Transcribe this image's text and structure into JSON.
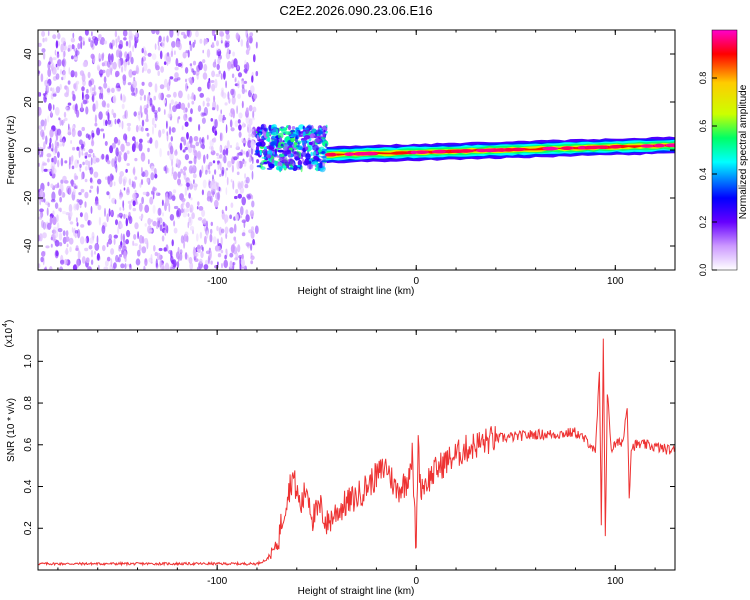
{
  "page": {
    "title": "C2E2.2026.090.23.06.E16"
  },
  "chart_data": [
    {
      "type": "heatmap",
      "xlabel": "Height of straight line (km)",
      "ylabel": "Frequency (Hz)",
      "xlim": [
        -190,
        130
      ],
      "ylim": [
        -50,
        50
      ],
      "x_ticks": [
        -100,
        0,
        100
      ],
      "x_tick_labels": [
        "-100",
        "0",
        "100"
      ],
      "y_ticks": [
        -40,
        -20,
        0,
        20,
        40
      ],
      "y_tick_labels": [
        "-40",
        "-20",
        "0",
        "20",
        "40"
      ],
      "colorbar": {
        "label": "Normalized spectral amplitude",
        "range": [
          0,
          1
        ],
        "ticks": [
          0.0,
          0.2,
          0.4,
          0.6,
          0.8
        ],
        "tick_labels": [
          "0.0",
          "0.2",
          "0.4",
          "0.6",
          "0.8"
        ],
        "colors": [
          "#ffffff",
          "#cc99ff",
          "#6600ff",
          "#0000ff",
          "#00ffff",
          "#00ff66",
          "#ccff00",
          "#ffcc00",
          "#ff0000",
          "#ff00cc"
        ]
      },
      "regions": [
        {
          "x_range": [
            -190,
            -80
          ],
          "freq_range": [
            -50,
            50
          ],
          "amplitude": 0.15,
          "pattern": "noise"
        },
        {
          "x_range": [
            -80,
            -45
          ],
          "freq_range": [
            -8,
            10
          ],
          "amplitude": 0.45,
          "pattern": "blob"
        },
        {
          "x_range": [
            -45,
            130
          ],
          "freq_center": [
            -2,
            2
          ],
          "amplitude": 0.9,
          "pattern": "band"
        }
      ]
    },
    {
      "type": "line",
      "xlabel": "Height of straight line (km)",
      "ylabel": "SNR (10 * v/v)",
      "y_scale_label": "(x10",
      "y_scale_exp": "4",
      "xlim": [
        -190,
        130
      ],
      "ylim": [
        0,
        1.15
      ],
      "x_ticks": [
        -100,
        0,
        100
      ],
      "x_tick_labels": [
        "-100",
        "0",
        "100"
      ],
      "y_ticks": [
        0.2,
        0.4,
        0.6,
        0.8,
        1.0
      ],
      "y_tick_labels": [
        "0.2",
        "0.4",
        "0.6",
        "0.8",
        "1.0"
      ],
      "series": [
        {
          "color": "#ee3333",
          "x": [
            -190,
            -160,
            -130,
            -100,
            -80,
            -75,
            -70,
            -65,
            -62,
            -58,
            -55,
            -52,
            -48,
            -45,
            -40,
            -35,
            -30,
            -25,
            -20,
            -15,
            -10,
            -5,
            -2,
            0,
            1,
            2,
            5,
            10,
            15,
            20,
            25,
            30,
            40,
            50,
            60,
            70,
            80,
            88,
            90,
            92,
            93,
            94,
            95,
            96,
            98,
            100,
            104,
            106,
            107,
            108,
            110,
            115,
            120,
            125,
            130
          ],
          "y": [
            0.03,
            0.03,
            0.03,
            0.03,
            0.03,
            0.05,
            0.12,
            0.35,
            0.45,
            0.3,
            0.4,
            0.25,
            0.3,
            0.22,
            0.28,
            0.32,
            0.35,
            0.4,
            0.45,
            0.5,
            0.38,
            0.42,
            0.55,
            0.08,
            0.65,
            0.4,
            0.42,
            0.48,
            0.52,
            0.55,
            0.58,
            0.6,
            0.63,
            0.64,
            0.65,
            0.65,
            0.66,
            0.6,
            0.55,
            0.95,
            0.2,
            1.12,
            0.15,
            0.85,
            0.58,
            0.6,
            0.62,
            0.8,
            0.35,
            0.58,
            0.6,
            0.6,
            0.59,
            0.58,
            0.57
          ]
        }
      ]
    }
  ]
}
